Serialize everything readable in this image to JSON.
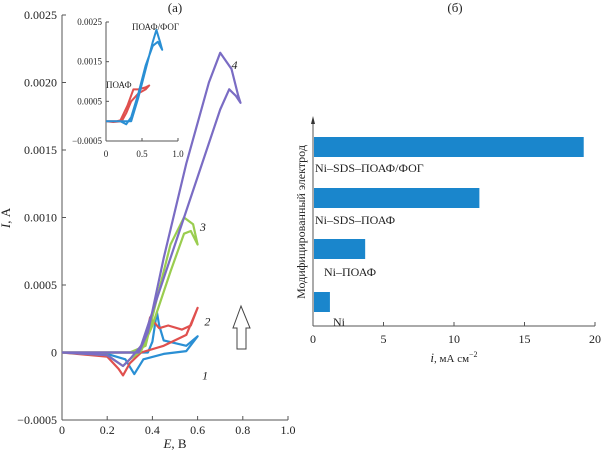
{
  "chart_data": [
    {
      "panel": "(a)",
      "type": "line",
      "title": "(a)",
      "xlabel_italic": "E",
      "xlabel_rest": ", В",
      "ylabel_italic": "I",
      "ylabel_rest": ", А",
      "xlim": [
        0,
        1.0
      ],
      "ylim": [
        -0.0005,
        0.0025
      ],
      "xticks": [
        "0",
        "0.2",
        "0.4",
        "0.6",
        "0.8",
        "1.0"
      ],
      "yticks": [
        "-0.0005",
        "0",
        "0.0005",
        "0.0010",
        "0.0015",
        "0.0020",
        "0.0025"
      ],
      "arrow": "up",
      "series": [
        {
          "name": "1",
          "color": "#2a8fd4",
          "points": [
            [
              0,
              0
            ],
            [
              0.2,
              -1e-05
            ],
            [
              0.28,
              -5e-05
            ],
            [
              0.32,
              -0.00016
            ],
            [
              0.36,
              -5e-05
            ],
            [
              0.45,
              -1e-05
            ],
            [
              0.55,
              1e-05
            ],
            [
              0.6,
              0.00012
            ],
            [
              0.55,
              5e-05
            ],
            [
              0.45,
              9e-05
            ],
            [
              0.43,
              0.0002
            ],
            [
              0.42,
              0.0003
            ],
            [
              0.4,
              8e-05
            ],
            [
              0.38,
              0
            ],
            [
              0.2,
              0
            ],
            [
              0,
              0
            ]
          ]
        },
        {
          "name": "2",
          "color": "#e0504e",
          "points": [
            [
              0,
              0
            ],
            [
              0.2,
              -3e-05
            ],
            [
              0.25,
              -0.00012
            ],
            [
              0.27,
              -0.00017
            ],
            [
              0.3,
              -8e-05
            ],
            [
              0.35,
              0
            ],
            [
              0.45,
              5e-05
            ],
            [
              0.55,
              0.00013
            ],
            [
              0.6,
              0.00033
            ],
            [
              0.57,
              0.0002
            ],
            [
              0.53,
              0.00017
            ],
            [
              0.47,
              0.0002
            ],
            [
              0.43,
              0.00018
            ],
            [
              0.39,
              0.00026
            ],
            [
              0.37,
              0.0001
            ],
            [
              0.33,
              0
            ],
            [
              0.2,
              0
            ],
            [
              0,
              0
            ]
          ]
        },
        {
          "name": "3",
          "color": "#9acd4f",
          "points": [
            [
              0,
              0
            ],
            [
              0.2,
              -2e-05
            ],
            [
              0.27,
              -0.0001
            ],
            [
              0.3,
              -5e-05
            ],
            [
              0.35,
              1e-05
            ],
            [
              0.4,
              0.0002
            ],
            [
              0.48,
              0.0006
            ],
            [
              0.54,
              0.00088
            ],
            [
              0.57,
              0.0009
            ],
            [
              0.6,
              0.0008
            ],
            [
              0.58,
              0.00095
            ],
            [
              0.54,
              0.001
            ],
            [
              0.48,
              0.0008
            ],
            [
              0.42,
              0.0004
            ],
            [
              0.37,
              5e-05
            ],
            [
              0.3,
              0
            ],
            [
              0.2,
              0
            ],
            [
              0,
              0
            ]
          ]
        },
        {
          "name": "4",
          "color": "#7a6cc4",
          "points": [
            [
              0,
              0
            ],
            [
              0.2,
              -2e-05
            ],
            [
              0.27,
              -0.0001
            ],
            [
              0.3,
              -5e-05
            ],
            [
              0.35,
              5e-05
            ],
            [
              0.4,
              0.0003
            ],
            [
              0.5,
              0.0008
            ],
            [
              0.6,
              0.0013
            ],
            [
              0.7,
              0.0018
            ],
            [
              0.74,
              0.00195
            ],
            [
              0.77,
              0.0019
            ],
            [
              0.79,
              0.00185
            ],
            [
              0.78,
              0.0019
            ],
            [
              0.75,
              0.0021
            ],
            [
              0.7,
              0.00222
            ],
            [
              0.65,
              0.002
            ],
            [
              0.55,
              0.0014
            ],
            [
              0.45,
              0.0007
            ],
            [
              0.38,
              0.00015
            ],
            [
              0.34,
              0
            ],
            [
              0.2,
              0
            ],
            [
              0,
              0
            ]
          ]
        }
      ],
      "inset": {
        "xlim": [
          0,
          1.0
        ],
        "ylim": [
          -0.0005,
          0.0025
        ],
        "xticks": [
          "0",
          "0.5",
          "1.0"
        ],
        "yticks": [
          "-0.0005",
          "0.0005",
          "0.0015",
          "0.0025"
        ],
        "series": [
          {
            "name": "ПОАФ",
            "color": "#e0504e",
            "points": [
              [
                0,
                0
              ],
              [
                0.15,
                0
              ],
              [
                0.2,
                2e-05
              ],
              [
                0.3,
                0.0004
              ],
              [
                0.38,
                0.0008
              ],
              [
                0.45,
                0.0008
              ],
              [
                0.55,
                0.00085
              ],
              [
                0.6,
                0.0009
              ],
              [
                0.55,
                0.0008
              ],
              [
                0.45,
                0.0007
              ],
              [
                0.35,
                0.0005
              ],
              [
                0.28,
                0.0002
              ],
              [
                0.22,
                0
              ],
              [
                0.1,
                -2e-05
              ],
              [
                0,
                0
              ]
            ]
          },
          {
            "name": "ПОАФ/ФОГ",
            "color": "#2a8fd4",
            "points": [
              [
                0,
                0
              ],
              [
                0.2,
                0
              ],
              [
                0.28,
                -8e-05
              ],
              [
                0.35,
                0.0001
              ],
              [
                0.45,
                0.0007
              ],
              [
                0.55,
                0.0014
              ],
              [
                0.65,
                0.0019
              ],
              [
                0.72,
                0.002
              ],
              [
                0.78,
                0.0018
              ],
              [
                0.75,
                0.002
              ],
              [
                0.7,
                0.0023
              ],
              [
                0.65,
                0.002
              ],
              [
                0.55,
                0.0013
              ],
              [
                0.45,
                0.0006
              ],
              [
                0.35,
                0
              ],
              [
                0.2,
                0
              ],
              [
                0,
                0
              ]
            ]
          }
        ]
      }
    },
    {
      "panel": "(б)",
      "type": "bar",
      "orientation": "horizontal",
      "title": "(б)",
      "xlabel_italic": "i",
      "xlabel_rest": ", мА см",
      "xlabel_sup": "−2",
      "ylabel": "Модифицированный электрод",
      "xlim": [
        0,
        20
      ],
      "xticks": [
        "0",
        "5",
        "10",
        "15",
        "20"
      ],
      "color": "#1a86cc",
      "categories": [
        "Ni",
        "Ni–ПОАФ",
        "Ni–SDS–ПОАФ",
        "Ni–SDS–ПОАФ/ФОГ"
      ],
      "values": [
        1.2,
        3.7,
        11.8,
        19.2
      ]
    }
  ]
}
